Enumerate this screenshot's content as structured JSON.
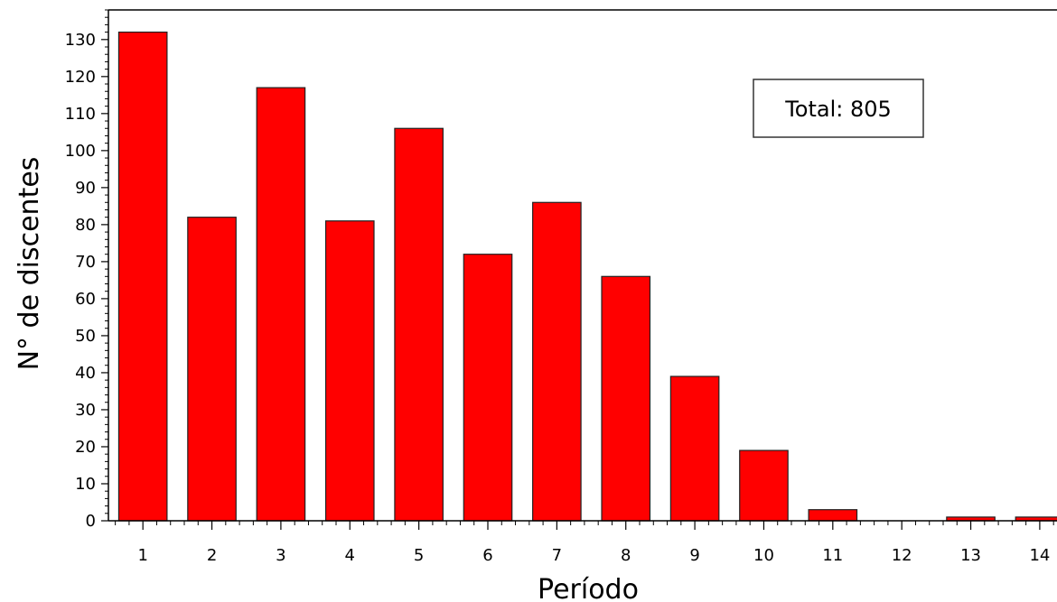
{
  "chart_data": {
    "type": "bar",
    "title": "",
    "xlabel": "Período",
    "ylabel": "N° de discentes",
    "categories": [
      "1",
      "2",
      "3",
      "4",
      "5",
      "6",
      "7",
      "8",
      "9",
      "10",
      "11",
      "12",
      "13",
      "14"
    ],
    "values": [
      132,
      82,
      117,
      81,
      106,
      72,
      86,
      66,
      39,
      19,
      3,
      0,
      1,
      1
    ],
    "ylim": [
      0,
      138
    ],
    "yticks": [
      0,
      10,
      20,
      30,
      40,
      50,
      60,
      70,
      80,
      90,
      100,
      110,
      120,
      130
    ],
    "grid": false,
    "bar_color": "#ff0000",
    "annotation": "Total: 805",
    "annotation_position": "top-right"
  }
}
